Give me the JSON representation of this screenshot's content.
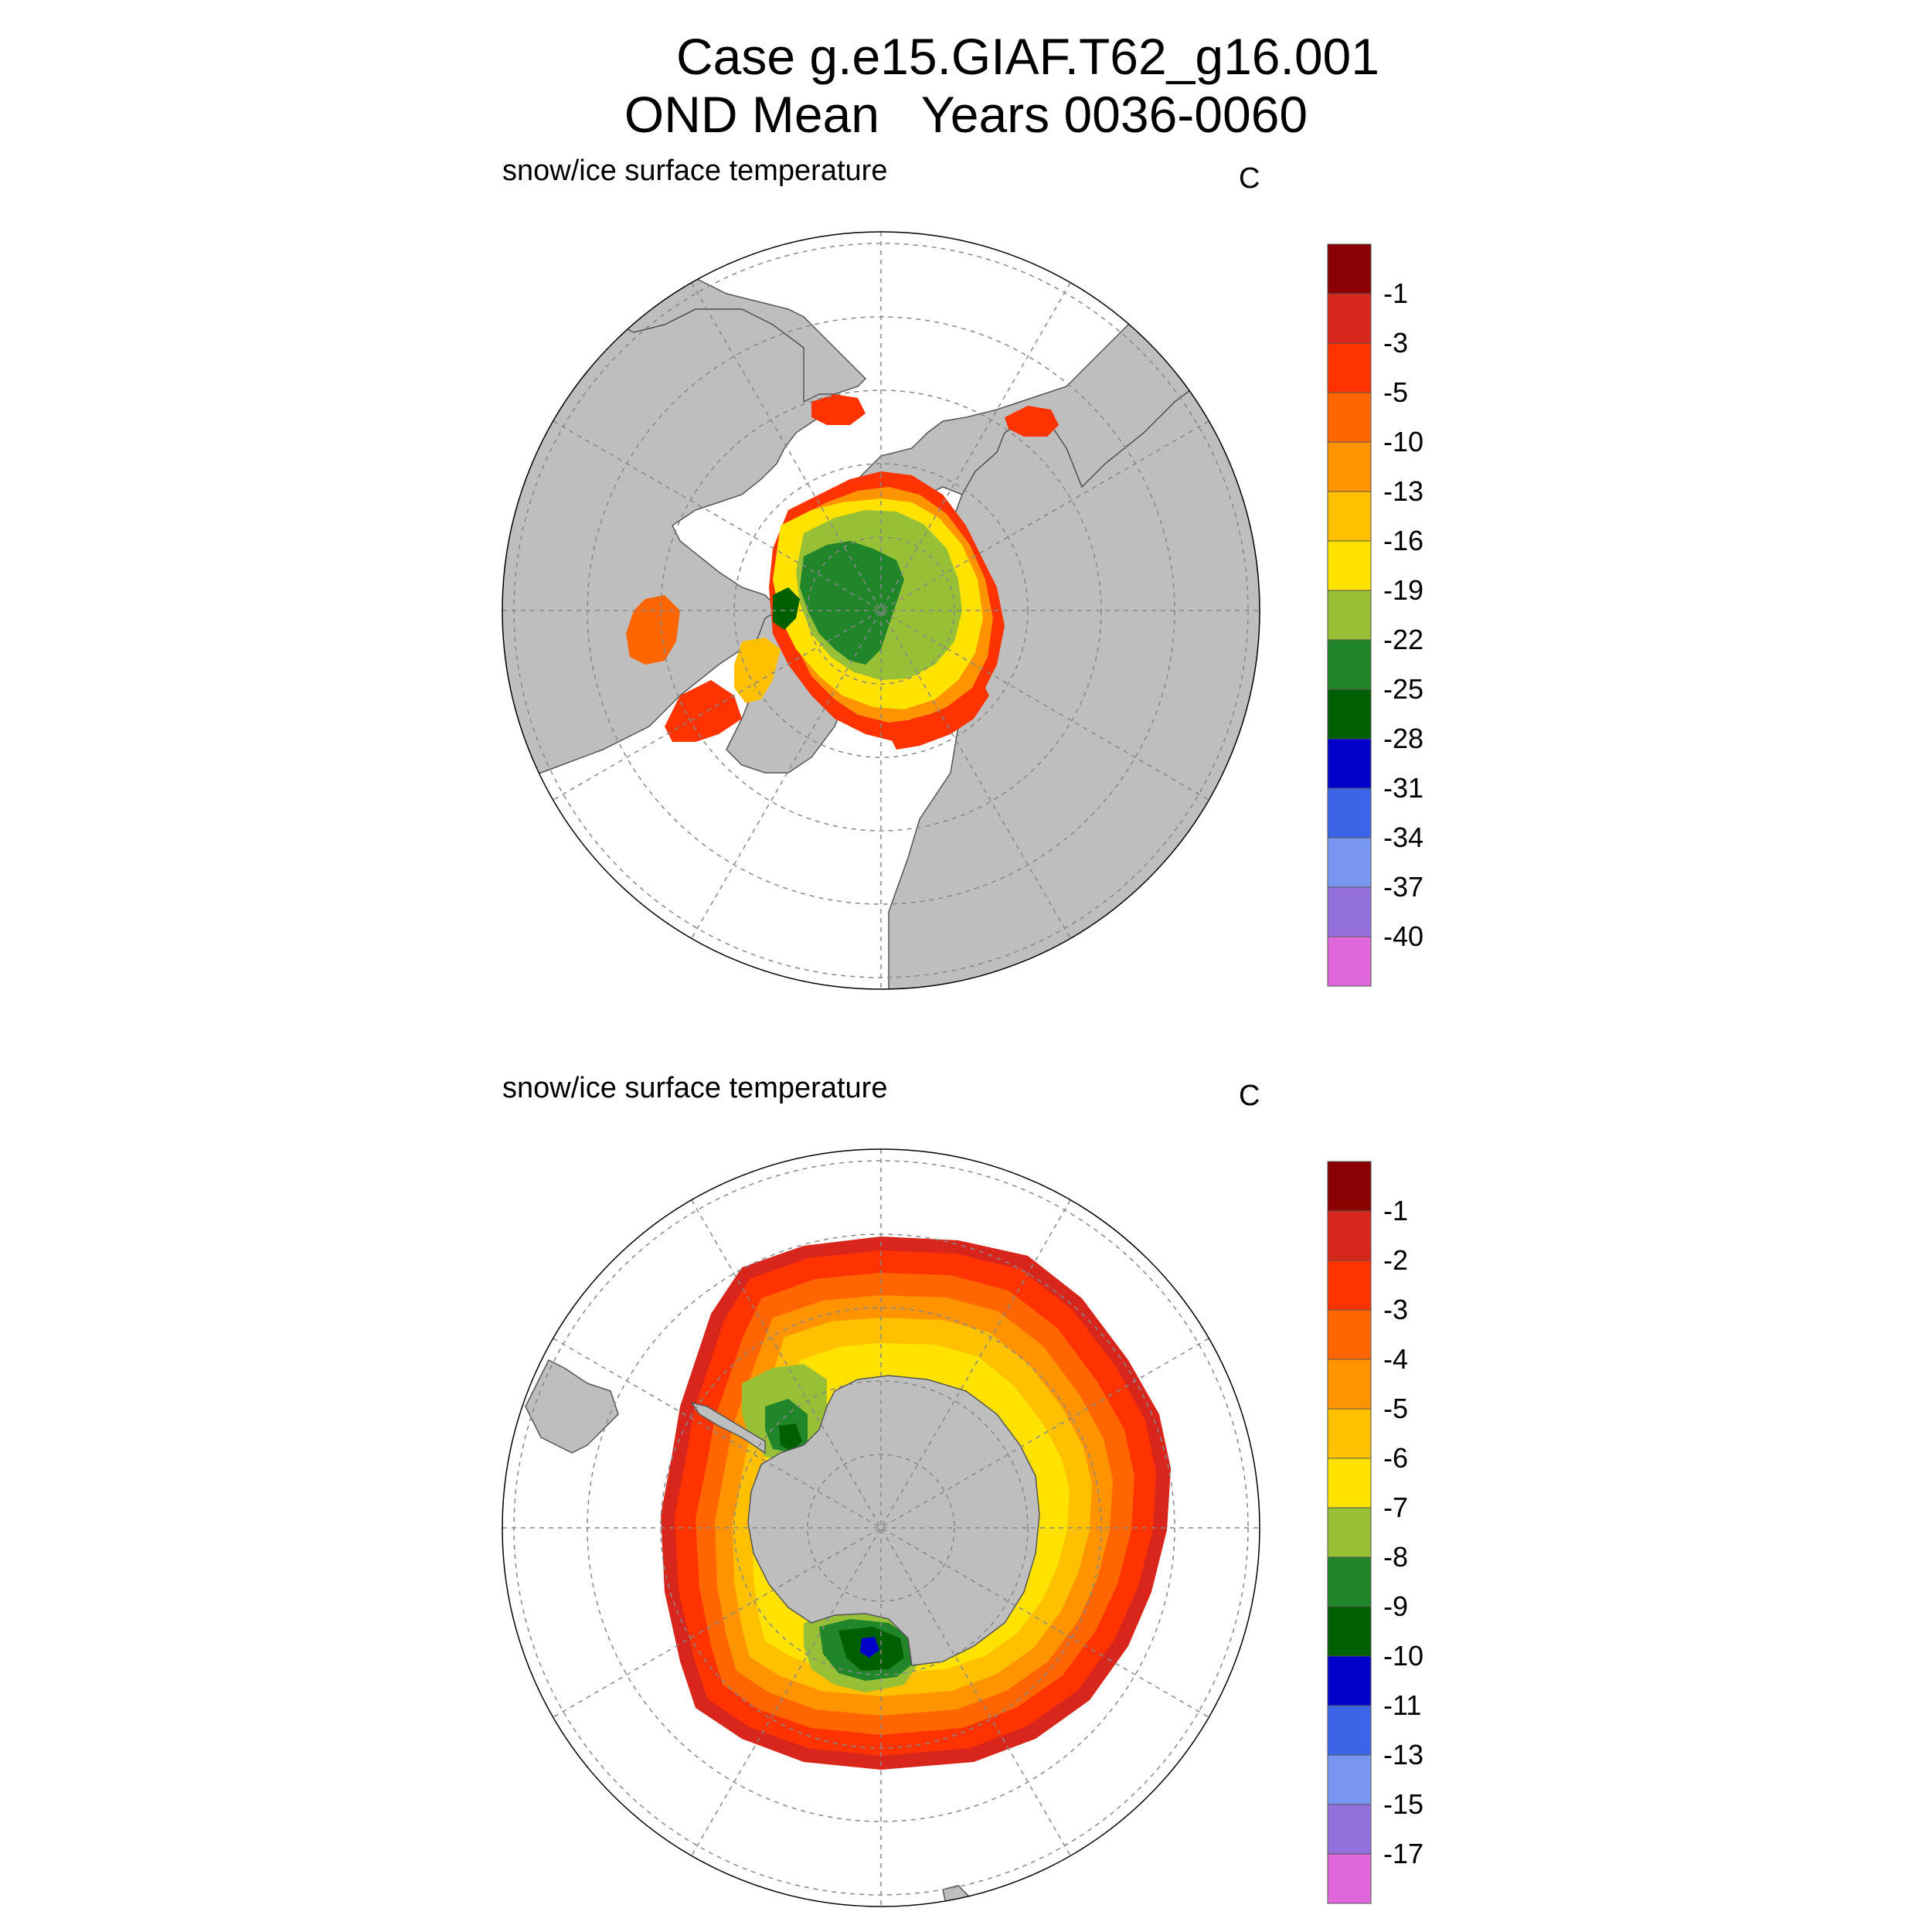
{
  "title": {
    "line1": "Case g.e15.GIAF.T62_g16.001",
    "line2": "OND Mean   Years 0036-0060"
  },
  "colors": {
    "land": "#bebebe",
    "ocean": "#ffffff",
    "grid": "#888888"
  },
  "panels": [
    {
      "hemisphere": "north",
      "variable": "snow/ice surface temperature",
      "units": "C",
      "colorbar": {
        "colors": [
          "#8b0000",
          "#d9261c",
          "#ff3300",
          "#ff6600",
          "#ff9400",
          "#ffc000",
          "#ffe200",
          "#98c037",
          "#21862a",
          "#006000",
          "#0000c8",
          "#3c64e6",
          "#7896f0",
          "#9370dc",
          "#e066dc"
        ],
        "labels": [
          "-1",
          "-3",
          "-5",
          "-10",
          "-13",
          "-16",
          "-19",
          "-22",
          "-25",
          "-28",
          "-31",
          "-34",
          "-37",
          "-40"
        ]
      }
    },
    {
      "hemisphere": "south",
      "variable": "snow/ice surface temperature",
      "units": "C",
      "colorbar": {
        "colors": [
          "#8b0000",
          "#d9261c",
          "#ff3300",
          "#ff6600",
          "#ff9400",
          "#ffc000",
          "#ffe200",
          "#98c037",
          "#21862a",
          "#006000",
          "#0000c8",
          "#3c64e6",
          "#7896f0",
          "#9370dc",
          "#e066dc"
        ],
        "labels": [
          "-1",
          "-2",
          "-3",
          "-4",
          "-5",
          "-6",
          "-7",
          "-8",
          "-9",
          "-10",
          "-11",
          "-13",
          "-15",
          "-17"
        ]
      }
    }
  ]
}
